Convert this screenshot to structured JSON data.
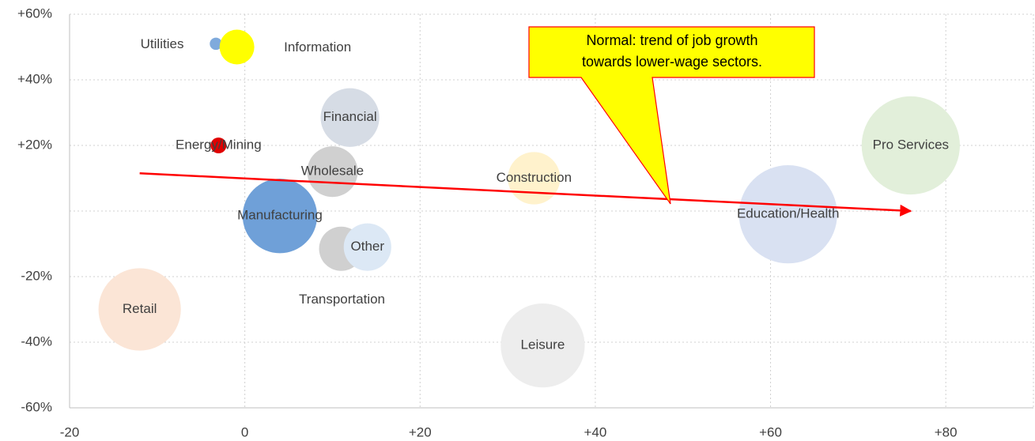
{
  "chart_data": {
    "type": "bubble",
    "xlim": [
      -20,
      90
    ],
    "xticks": [
      -20,
      0,
      {
        "value": 20,
        "label": "+20"
      },
      {
        "value": 40,
        "label": "+40"
      },
      {
        "value": 60,
        "label": "+60"
      },
      {
        "value": 80,
        "label": "+80"
      }
    ],
    "ylim": [
      -60,
      60
    ],
    "yticks": [
      {
        "value": -60,
        "label": "-60%"
      },
      {
        "value": -40,
        "label": "-40%"
      },
      {
        "value": -20,
        "label": "-20%"
      },
      {
        "value": 20,
        "label": "+20%"
      },
      {
        "value": 40,
        "label": "+40%"
      },
      {
        "value": 60,
        "label": "+60%"
      }
    ],
    "grid": true,
    "series": [
      {
        "name": "Retail",
        "color": "#fbe5d6",
        "x": -12,
        "y": -30,
        "size": 270
      },
      {
        "name": "Leisure",
        "color": "#ededed",
        "x": 34,
        "y": -41,
        "size": 281
      },
      {
        "name": "Education/Health",
        "color": "#d9e1f2",
        "x": 62,
        "y": -1,
        "size": 384
      },
      {
        "name": "Pro Services",
        "color": "#e2efda",
        "x": 76,
        "y": 20,
        "size": 384
      },
      {
        "name": "Manufacturing",
        "color": "#6fa0d8",
        "x": 4,
        "y": -1.5,
        "size": 221
      },
      {
        "name": "Financial",
        "color": "#d6dce5",
        "x": 12,
        "y": 28.5,
        "size": 137
      },
      {
        "name": "Construction",
        "color": "#fff2cc",
        "x": 33,
        "y": 10,
        "size": 109
      },
      {
        "name": "Wholesale",
        "color": "#d0d0d0",
        "x": 10,
        "y": 12,
        "size": 102
      },
      {
        "name": "Transportation",
        "color": "#d0d0d0",
        "x": 11,
        "y": -11.5,
        "size": 78
      },
      {
        "name": "Other",
        "color": "#dce8f5",
        "x": 14,
        "y": -11,
        "size": 90
      },
      {
        "name": "Utilities",
        "color": "#7faadc",
        "x": -3.3,
        "y": 51,
        "size": 6
      },
      {
        "name": "Information",
        "color": "#ffff00",
        "x": -0.9,
        "y": 50,
        "size": 48
      },
      {
        "name": "Energy/Mining",
        "color": "#e00000",
        "x": -3,
        "y": 20,
        "size": 10
      }
    ],
    "trendline": {
      "color": "#ff0000",
      "x": [
        -12,
        76
      ],
      "y": [
        11.5,
        0
      ]
    },
    "annotation": {
      "lines": [
        "Normal: trend of job growth",
        "towards lower-wage sectors."
      ]
    }
  }
}
